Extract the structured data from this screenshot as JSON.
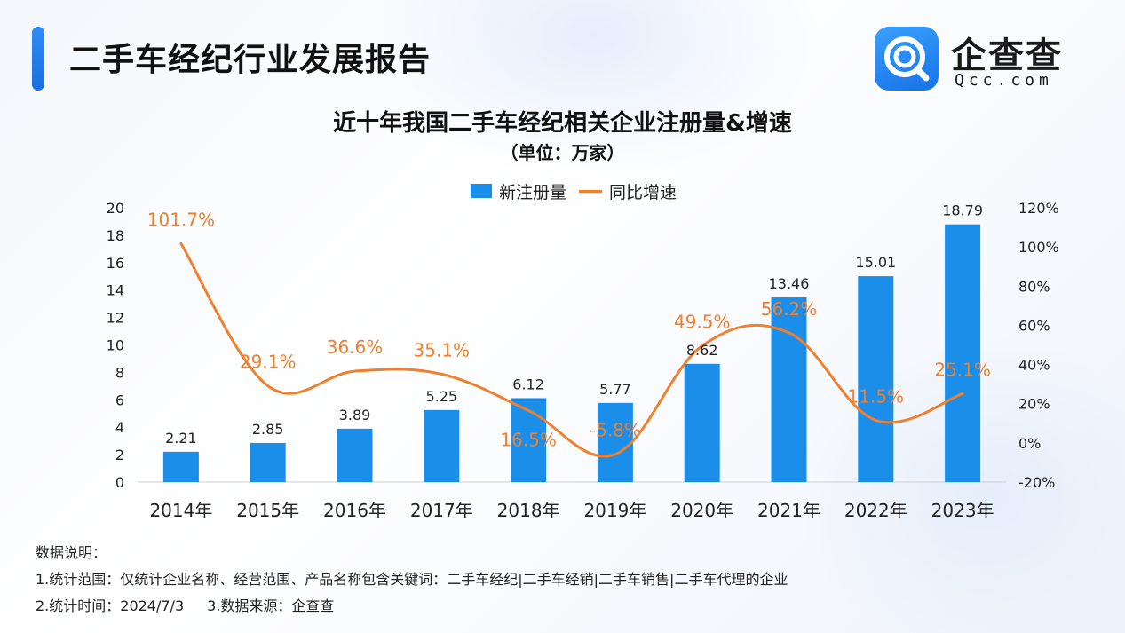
{
  "header": {
    "report_title": "二手车经纪行业发展报告",
    "logo_text": "企查查",
    "logo_sub": "Qcc.com"
  },
  "chart_data": {
    "type": "bar+line",
    "title": "近十年我国二手车经纪相关企业注册量&增速",
    "subtitle": "（单位：万家）",
    "categories": [
      "2014年",
      "2015年",
      "2016年",
      "2017年",
      "2018年",
      "2019年",
      "2020年",
      "2021年",
      "2022年",
      "2023年"
    ],
    "series": [
      {
        "name": "新注册量",
        "type": "bar",
        "axis": "left",
        "values": [
          2.21,
          2.85,
          3.89,
          5.25,
          6.12,
          5.77,
          8.62,
          13.46,
          15.01,
          18.79
        ],
        "labels": [
          "2.21",
          "2.85",
          "3.89",
          "5.25",
          "6.12",
          "5.77",
          "8.62",
          "13.46",
          "15.01",
          "18.79"
        ]
      },
      {
        "name": "同比增速",
        "type": "line",
        "axis": "right",
        "values": [
          101.7,
          29.1,
          36.6,
          35.1,
          16.5,
          -5.8,
          49.5,
          56.2,
          11.5,
          25.1
        ],
        "labels": [
          "101.7%",
          "29.1%",
          "36.6%",
          "35.1%",
          "16.5%",
          "-5.8%",
          "49.5%",
          "56.2%",
          "11.5%",
          "25.1%"
        ]
      }
    ],
    "y_left": {
      "min": 0,
      "max": 20,
      "ticks": [
        "0",
        "2",
        "4",
        "6",
        "8",
        "10",
        "12",
        "14",
        "16",
        "18",
        "20"
      ]
    },
    "y_right": {
      "min": -20,
      "max": 120,
      "ticks": [
        "-20%",
        "0%",
        "20%",
        "40%",
        "60%",
        "80%",
        "100%",
        "120%"
      ]
    },
    "legend_position": "top-center",
    "grid": false,
    "colors": {
      "bar": "#1a8ee8",
      "line": "#f07f2e"
    }
  },
  "notes": {
    "heading": "数据说明：",
    "line1": "1.统计范围：仅统计企业名称、经营范围、产品名称包含关键词：二手车经纪|二手车经销|二手车销售|二手车代理的企业",
    "line2a": "2.统计时间：2024/7/3",
    "line2b": "3.数据来源：企查查"
  }
}
